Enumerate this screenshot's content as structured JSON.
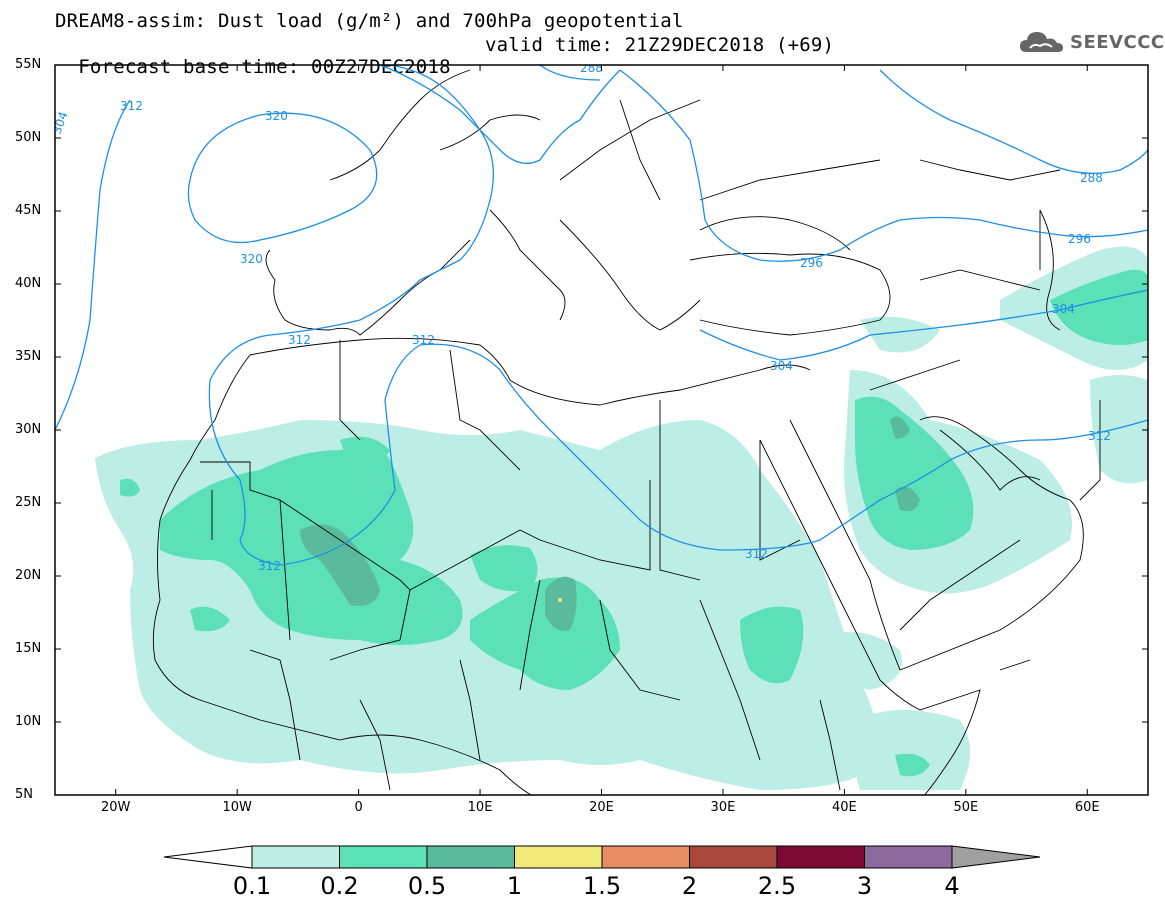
{
  "title": {
    "line1": "DREAM8-assim: Dust load (g/m²) and 700hPa geopotential",
    "line2": "Forecast base time: 00Z27DEC2018",
    "valid_time": "valid time: 21Z29DEC2018 (+69)"
  },
  "logo": {
    "text": "SEEVCCC",
    "icon": "cloud-logo-icon"
  },
  "lat_ticks": [
    "55N",
    "50N",
    "45N",
    "40N",
    "35N",
    "30N",
    "25N",
    "20N",
    "15N",
    "10N",
    "5N"
  ],
  "lon_ticks": [
    "20W",
    "10W",
    "0",
    "10E",
    "20E",
    "30E",
    "40E",
    "50E",
    "60E"
  ],
  "contour_labels": [
    "304",
    "312",
    "320",
    "320",
    "312",
    "312",
    "312",
    "288",
    "296",
    "304",
    "304",
    "312",
    "312",
    "288",
    "296",
    "288"
  ],
  "colorbar": {
    "labels": [
      "0.1",
      "0.2",
      "0.5",
      "1",
      "1.5",
      "2",
      "2.5",
      "3",
      "4"
    ],
    "colors": [
      "#bdeee6",
      "#5be0b8",
      "#5aba9c",
      "#f3ea7c",
      "#e88c64",
      "#a8483c",
      "#7c0a32",
      "#8c6a9c"
    ],
    "under_color": "#ffffff",
    "over_color": "#a0a0a0"
  },
  "colors": {
    "dust_low": "#bdeee6",
    "dust_mid": "#5be0b8",
    "dust_high": "#5aba9c",
    "contour": "#1e90e6",
    "border": "#000000"
  }
}
